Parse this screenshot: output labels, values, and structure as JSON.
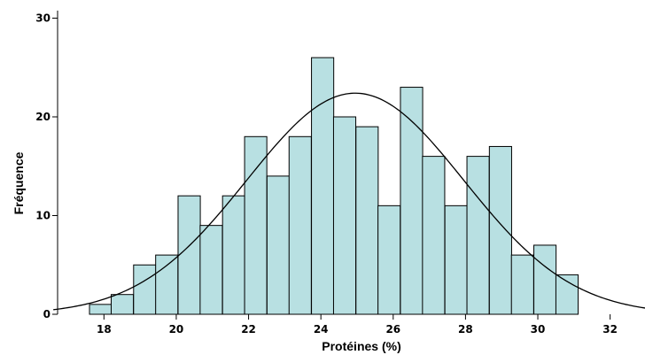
{
  "chart_data": {
    "type": "bar",
    "subtype": "histogram",
    "xlabel": "Protéines (%)",
    "ylabel": "Fréquence",
    "xlim": [
      16.6,
      33.2
    ],
    "ylim": [
      0,
      30.5
    ],
    "x_ticks": [
      "18",
      "20",
      "22",
      "24",
      "26",
      "28",
      "30",
      "32"
    ],
    "y_ticks": [
      "0",
      "10",
      "20",
      "30"
    ],
    "bin_width": 0.615,
    "bins": [
      {
        "start": 17.6,
        "count": 1
      },
      {
        "start": 18.2,
        "count": 2
      },
      {
        "start": 18.82,
        "count": 5
      },
      {
        "start": 19.43,
        "count": 6
      },
      {
        "start": 20.05,
        "count": 12
      },
      {
        "start": 20.66,
        "count": 9
      },
      {
        "start": 21.28,
        "count": 12
      },
      {
        "start": 21.89,
        "count": 18
      },
      {
        "start": 22.51,
        "count": 14
      },
      {
        "start": 23.12,
        "count": 18
      },
      {
        "start": 23.74,
        "count": 26
      },
      {
        "start": 24.35,
        "count": 20
      },
      {
        "start": 24.97,
        "count": 19
      },
      {
        "start": 25.58,
        "count": 11
      },
      {
        "start": 26.2,
        "count": 23
      },
      {
        "start": 26.81,
        "count": 16
      },
      {
        "start": 27.43,
        "count": 11
      },
      {
        "start": 28.04,
        "count": 16
      },
      {
        "start": 28.66,
        "count": 17
      },
      {
        "start": 29.27,
        "count": 6
      },
      {
        "start": 29.89,
        "count": 7
      },
      {
        "start": 30.5,
        "count": 4
      }
    ],
    "normal_curve": {
      "mean": 24.95,
      "sd": 3.0,
      "peak": 22.4
    },
    "colors": {
      "bar_fill": "#b8e0e2",
      "bar_edge": "#000000",
      "curve": "#000000",
      "axis": "#000000"
    },
    "grid": false,
    "legend": "none"
  }
}
